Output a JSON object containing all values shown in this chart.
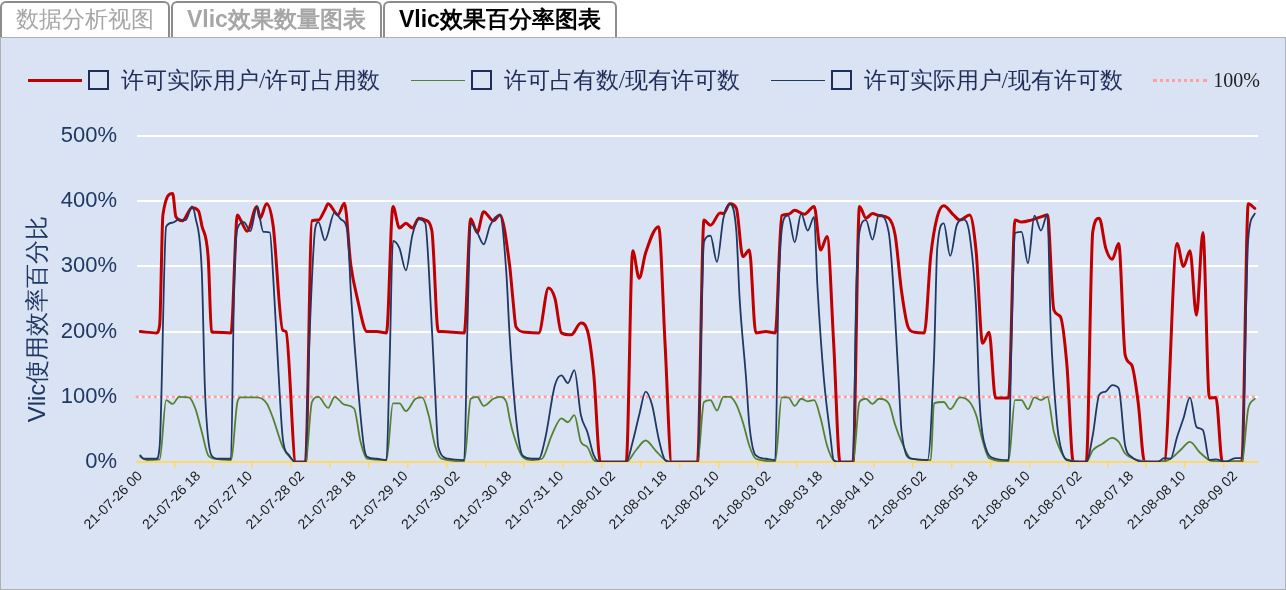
{
  "chart_data": {
    "type": "line",
    "title": "Vlic效果百分率图表",
    "annotations": [
      "数据分析视图",
      "Vlic效果数量图表"
    ],
    "ylabel": "Vlic使用效率百分比",
    "xlim": [
      "--07-25T23:00",
      "--08-09T09:00"
    ],
    "xticks": [
      {
        "value": "--07-26T00:00",
        "label": "21-07-26 00"
      },
      {
        "value": "--07-26T10:30",
        "label": null
      },
      {
        "value": "--07-26T18:00",
        "label": "21-07-26 18"
      },
      {
        "value": "--07-26T22:30",
        "label": null
      },
      {
        "value": "--07-27T10:00",
        "label": "21-07-27 10"
      },
      {
        "value": "--07-27T10:30",
        "label": null
      },
      {
        "value": "--07-27T22:30",
        "label": null
      },
      {
        "value": "--07-28T02:00",
        "label": "21-07-28 02"
      },
      {
        "value": "--07-28T10:30",
        "label": null
      },
      {
        "value": "--07-28T18:00",
        "label": "21-07-28 18"
      },
      {
        "value": "--07-28T22:30",
        "label": null
      },
      {
        "value": "--07-29T10:00",
        "label": "21-07-29 10"
      },
      {
        "value": "--07-29T10:30",
        "label": null
      },
      {
        "value": "--07-29T22:30",
        "label": null
      },
      {
        "value": "--07-30T02:00",
        "label": "21-07-30 02"
      },
      {
        "value": "--07-30T10:30",
        "label": null
      },
      {
        "value": "--07-30T18:00",
        "label": "21-07-30 18"
      },
      {
        "value": "--07-30T22:30",
        "label": null
      },
      {
        "value": "--07-31T10:00",
        "label": "21-07-31 10"
      },
      {
        "value": "--07-31T10:30",
        "label": null
      },
      {
        "value": "--07-31T22:30",
        "label": null
      },
      {
        "value": "--08-01T02:00",
        "label": "21-08-01 02"
      },
      {
        "value": "--08-01T10:30",
        "label": null
      },
      {
        "value": "--08-01T18:00",
        "label": "21-08-01 18"
      },
      {
        "value": "--08-01T22:30",
        "label": null
      },
      {
        "value": "--08-02T10:00",
        "label": "21-08-02 10"
      },
      {
        "value": "--08-02T10:30",
        "label": null
      },
      {
        "value": "--08-02T22:30",
        "label": null
      },
      {
        "value": "--08-03T02:00",
        "label": "21-08-03 02"
      },
      {
        "value": "--08-03T10:30",
        "label": null
      },
      {
        "value": "--08-03T18:00",
        "label": "21-08-03 18"
      },
      {
        "value": "--08-03T22:30",
        "label": null
      },
      {
        "value": "--08-04T10:00",
        "label": "21-08-04 10"
      },
      {
        "value": "--08-04T10:30",
        "label": null
      },
      {
        "value": "--08-04T22:30",
        "label": null
      },
      {
        "value": "--08-05T02:00",
        "label": "21-08-05 02"
      },
      {
        "value": "--08-05T10:30",
        "label": null
      },
      {
        "value": "--08-05T18:00",
        "label": "21-08-05 18"
      },
      {
        "value": "--08-05T22:30",
        "label": null
      },
      {
        "value": "--08-06T10:00",
        "label": "21-08-06 10"
      },
      {
        "value": "--08-06T10:30",
        "label": null
      },
      {
        "value": "--08-06T22:30",
        "label": null
      },
      {
        "value": "--08-07T02:00",
        "label": "21-08-07 02"
      },
      {
        "value": "--08-07T10:30",
        "label": null
      },
      {
        "value": "--08-07T18:00",
        "label": "21-08-07 18"
      },
      {
        "value": "--08-07T22:30",
        "label": null
      },
      {
        "value": "--08-08T10:00",
        "label": "21-08-08 10"
      },
      {
        "value": "--08-08T10:30",
        "label": null
      },
      {
        "value": "--08-08T22:30",
        "label": null
      },
      {
        "value": "--08-09T02:00",
        "label": "21-08-09 02"
      }
    ],
    "ylim": [
      0,
      500
    ],
    "yticks": [
      {
        "value": 0,
        "label": "0%"
      },
      {
        "value": 100,
        "label": "100%"
      },
      {
        "value": 200,
        "label": "200%"
      },
      {
        "value": 300,
        "label": "300%"
      },
      {
        "value": 400,
        "label": "400%"
      },
      {
        "value": 500,
        "label": "500%"
      }
    ],
    "grid": "y",
    "legend": "top",
    "ref_lines": [
      {
        "axis": "y",
        "value": 100,
        "label": "100%",
        "color": "#ff9f9f",
        "line_style": "dotted"
      }
    ],
    "series": [
      {
        "name": "许可实际用户/许可占用数",
        "color": "#c00000",
        "x": [
          "--07-26T00:00",
          "--07-26T05:00",
          "--07-26T06:00",
          "--07-26T07:00",
          "--07-26T10:00",
          "--07-26T11:00",
          "--07-26T13:00",
          "--07-26T16:00",
          "--07-26T18:00",
          "--07-26T19:00",
          "--07-26T21:00",
          "--07-26T22:00",
          "--07-26T23:00",
          "--07-27T04:00",
          "--07-27T06:00",
          "--07-27T07:00",
          "--07-27T09:00",
          "--07-27T12:00",
          "--07-27T13:00",
          "--07-27T15:00",
          "--07-27T17:00",
          "--07-27T20:00",
          "--07-27T21:00",
          "--07-28T00:00",
          "--07-28T03:00",
          "--07-28T05:00",
          "--07-28T07:00",
          "--07-28T09:00",
          "--07-28T10:00",
          "--07-28T13:00",
          "--07-28T15:00",
          "--07-28T17:00",
          "--07-28T19:00",
          "--07-28T22:00",
          "--07-29T01:00",
          "--07-29T04:00",
          "--07-29T06:00",
          "--07-29T08:00",
          "--07-29T10:00",
          "--07-29T12:00",
          "--07-29T14:00",
          "--07-29T16:00",
          "--07-29T18:00",
          "--07-29T20:00",
          "--07-29T21:00",
          "--07-30T04:00",
          "--07-30T06:00",
          "--07-30T08:00",
          "--07-30T10:00",
          "--07-30T13:00",
          "--07-30T15:00",
          "--07-30T18:00",
          "--07-30T19:00",
          "--07-30T20:00",
          "--07-30T23:00",
          "--07-31T03:00",
          "--07-31T06:00",
          "--07-31T08:00",
          "--07-31T10:00",
          "--07-31T13:00",
          "--07-31T16:00",
          "--07-31T18:00",
          "--07-31T20:00",
          "--07-31T22:00",
          "--08-01T06:00",
          "--08-01T08:00",
          "--08-01T10:00",
          "--08-01T12:00",
          "--08-01T16:00",
          "--08-01T18:00",
          "--08-01T20:00",
          "--08-02T04:00",
          "--08-02T06:00",
          "--08-02T08:00",
          "--08-02T11:00",
          "--08-02T12:00",
          "--08-02T14:00",
          "--08-02T16:00",
          "--08-02T18:00",
          "--08-02T20:00",
          "--08-02T22:00",
          "--08-03T01:00",
          "--08-03T04:00",
          "--08-03T06:00",
          "--08-03T08:00",
          "--08-03T10:00",
          "--08-03T13:00",
          "--08-03T16:00",
          "--08-03T18:00",
          "--08-03T20:00",
          "--08-03T22:00",
          "--08-04T00:00",
          "--08-04T04:00",
          "--08-04T06:00",
          "--08-04T08:00",
          "--08-04T10:00",
          "--08-04T12:00",
          "--08-04T15:00",
          "--08-04T17:00",
          "--08-04T19:00",
          "--08-04T21:00",
          "--08-04T23:00",
          "--08-05T02:00",
          "--08-05T04:00",
          "--08-05T06:00",
          "--08-05T08:00",
          "--08-05T11:00",
          "--08-05T13:00",
          "--08-05T16:00",
          "--08-05T18:00",
          "--08-05T20:00",
          "--08-05T22:00",
          "--08-06T00:00",
          "--08-06T04:00",
          "--08-06T06:00",
          "--08-06T08:00",
          "--08-06T11:00",
          "--08-06T14:00",
          "--08-06T16:00",
          "--08-06T18:00",
          "--08-06T20:00",
          "--08-06T22:00",
          "--08-07T00:00",
          "--08-07T04:00",
          "--08-07T06:00",
          "--08-07T08:00",
          "--08-07T10:00",
          "--08-07T12:00",
          "--08-07T14:00",
          "--08-07T16:00",
          "--08-07T18:00",
          "--08-07T20:00",
          "--08-07T22:00",
          "--08-08T04:00",
          "--08-08T08:00",
          "--08-08T10:00",
          "--08-08T12:00",
          "--08-08T14:00",
          "--08-08T16:00",
          "--08-08T18:00",
          "--08-08T20:00",
          "--08-08T22:00",
          "--08-09T04:00",
          "--08-09T06:00",
          "--08-09T08:00"
        ],
        "values": [
          200,
          198,
          210,
          379,
          412,
          376,
          370,
          390,
          385,
          363,
          312,
          200,
          199,
          198,
          379,
          371,
          354,
          392,
          374,
          396,
          363,
          202,
          200,
          0,
          0,
          370,
          371,
          387,
          396,
          379,
          397,
          302,
          251,
          200,
          200,
          198,
          392,
          359,
          366,
          359,
          374,
          371,
          355,
          200,
          200,
          198,
          373,
          352,
          384,
          370,
          379,
          302,
          251,
          207,
          199,
          198,
          267,
          251,
          198,
          195,
          213,
          202,
          133,
          0,
          0,
          324,
          282,
          321,
          361,
          180,
          0,
          0,
          371,
          363,
          382,
          381,
          396,
          389,
          315,
          325,
          198,
          200,
          198,
          378,
          380,
          386,
          380,
          392,
          325,
          346,
          185,
          0,
          0,
          392,
          374,
          381,
          378,
          374,
          348,
          261,
          207,
          199,
          198,
          317,
          376,
          393,
          379,
          371,
          379,
          323,
          182,
          199,
          98,
          98,
          371,
          368,
          371,
          376,
          379,
          233,
          223,
          150,
          0,
          0,
          353,
          374,
          328,
          311,
          335,
          164,
          149,
          92,
          0,
          0,
          335,
          300,
          324,
          225,
          352,
          98,
          99,
          0,
          0,
          396,
          389
        ]
      },
      {
        "name": "许可占有数/现有许可数",
        "color": "#548235",
        "x": [
          "--07-26T00:00",
          "--07-26T02:00",
          "--07-26T06:00",
          "--07-26T08:00",
          "--07-26T10:00",
          "--07-26T12:00",
          "--07-26T15:00",
          "--07-26T17:00",
          "--07-26T19:00",
          "--07-26T21:00",
          "--07-26T23:00",
          "--07-27T04:00",
          "--07-27T06:00",
          "--07-27T07:00",
          "--07-27T12:00",
          "--07-27T15:00",
          "--07-27T17:00",
          "--07-27T20:00",
          "--07-27T23:00",
          "--07-28T00:00",
          "--07-28T03:00",
          "--07-28T05:00",
          "--07-28T07:00",
          "--07-28T10:00",
          "--07-28T12:00",
          "--07-28T15:00",
          "--07-28T18:00",
          "--07-28T20:00",
          "--07-28T22:00",
          "--07-29T04:00",
          "--07-29T06:00",
          "--07-29T08:00",
          "--07-29T10:00",
          "--07-29T13:00",
          "--07-29T15:00",
          "--07-29T17:00",
          "--07-29T19:00",
          "--07-29T21:00",
          "--07-30T04:00",
          "--07-30T06:00",
          "--07-30T08:00",
          "--07-30T10:00",
          "--07-30T13:00",
          "--07-30T15:00",
          "--07-30T17:00",
          "--07-30T18:00",
          "--07-30T19:00",
          "--07-30T22:00",
          "--07-31T01:00",
          "--07-31T04:00",
          "--07-31T07:00",
          "--07-31T10:00",
          "--07-31T12:00",
          "--07-31T14:00",
          "--07-31T16:00",
          "--07-31T18:00",
          "--07-31T20:00",
          "--07-31T22:00",
          "--08-01T06:00",
          "--08-01T09:00",
          "--08-01T12:00",
          "--08-01T15:00",
          "--08-01T18:00",
          "--08-01T20:00",
          "--08-02T04:00",
          "--08-02T06:00",
          "--08-02T08:00",
          "--08-02T10:00",
          "--08-02T12:00",
          "--08-02T14:00",
          "--08-02T16:00",
          "--08-02T18:00",
          "--08-02T20:00",
          "--08-02T22:00",
          "--08-03T04:00",
          "--08-03T06:00",
          "--08-03T08:00",
          "--08-03T10:00",
          "--08-03T12:00",
          "--08-03T14:00",
          "--08-03T16:00",
          "--08-03T18:00",
          "--08-03T20:00",
          "--08-03T22:00",
          "--08-04T00:00",
          "--08-04T04:00",
          "--08-04T06:00",
          "--08-04T08:00",
          "--08-04T10:00",
          "--08-04T12:00",
          "--08-04T15:00",
          "--08-04T17:00",
          "--08-04T19:00",
          "--08-04T22:00",
          "--08-05T04:00",
          "--08-05T05:00",
          "--08-05T08:00",
          "--08-05T10:00",
          "--08-05T13:00",
          "--08-05T16:00",
          "--08-05T18:00",
          "--08-05T20:00",
          "--08-05T22:00",
          "--08-06T04:00",
          "--08-06T06:00",
          "--08-06T08:00",
          "--08-06T10:00",
          "--08-06T12:00",
          "--08-06T14:00",
          "--08-06T16:00",
          "--08-06T18:00",
          "--08-06T20:00",
          "--08-06T22:00",
          "--08-07T04:00",
          "--08-07T06:00",
          "--08-07T09:00",
          "--08-07T12:00",
          "--08-07T14:00",
          "--08-07T16:00",
          "--08-07T20:00",
          "--08-08T03:00",
          "--08-08T06:00",
          "--08-08T09:00",
          "--08-08T12:00",
          "--08-08T15:00",
          "--08-08T18:00",
          "--08-08T21:00",
          "--08-09T04:00",
          "--08-09T06:00",
          "--08-09T08:00"
        ],
        "values": [
          8,
          3,
          4,
          95,
          89,
          100,
          99,
          82,
          46,
          10,
          5,
          3,
          92,
          99,
          99,
          90,
          67,
          23,
          3,
          0,
          0,
          92,
          100,
          83,
          100,
          88,
          82,
          31,
          5,
          3,
          90,
          90,
          78,
          97,
          99,
          72,
          25,
          5,
          1,
          97,
          100,
          86,
          97,
          100,
          92,
          67,
          46,
          8,
          3,
          5,
          41,
          67,
          61,
          72,
          31,
          23,
          3,
          0,
          0,
          18,
          33,
          18,
          3,
          0,
          0,
          92,
          95,
          79,
          100,
          100,
          88,
          61,
          25,
          5,
          1,
          99,
          99,
          86,
          97,
          93,
          95,
          67,
          25,
          3,
          0,
          0,
          92,
          97,
          89,
          97,
          90,
          57,
          31,
          5,
          3,
          90,
          92,
          81,
          99,
          92,
          72,
          33,
          6,
          1,
          95,
          95,
          81,
          99,
          95,
          100,
          46,
          18,
          4,
          0,
          18,
          28,
          37,
          31,
          13,
          3,
          0,
          5,
          18,
          31,
          15,
          3,
          1,
          1,
          82,
          97
        ]
      },
      {
        "name": "许可实际用户/现有许可数",
        "color": "#203864",
        "x": [
          "--07-26T00:00",
          "--07-26T01:00",
          "--07-26T05:00",
          "--07-26T06:00",
          "--07-26T08:00",
          "--07-26T10:00",
          "--07-26T12:00",
          "--07-26T14:00",
          "--07-26T16:00",
          "--07-26T17:00",
          "--07-26T19:00",
          "--07-26T20:00",
          "--07-26T22:00",
          "--07-27T00:00",
          "--07-27T04:00",
          "--07-27T05:00",
          "--07-27T06:00",
          "--07-27T08:00",
          "--07-27T10:00",
          "--07-27T12:00",
          "--07-27T14:00",
          "--07-27T16:00",
          "--07-27T17:00",
          "--07-27T19:00",
          "--07-27T20:00",
          "--07-27T22:00",
          "--07-28T00:00",
          "--07-28T03:00",
          "--07-28T04:00",
          "--07-28T06:00",
          "--07-28T07:00",
          "--07-28T09:00",
          "--07-28T12:00",
          "--07-28T14:00",
          "--07-28T16:00",
          "--07-28T17:00",
          "--07-28T19:00",
          "--07-28T21:00",
          "--07-28T22:00",
          "--07-29T01:00",
          "--07-29T04:00",
          "--07-29T05:00",
          "--07-29T06:00",
          "--07-29T08:00",
          "--07-29T10:00",
          "--07-29T12:00",
          "--07-29T14:00",
          "--07-29T16:00",
          "--07-29T17:00",
          "--07-29T19:00",
          "--07-29T20:00",
          "--07-29T23:00",
          "--07-30T04:00",
          "--07-30T05:00",
          "--07-30T06:00",
          "--07-30T08:00",
          "--07-30T10:00",
          "--07-30T12:00",
          "--07-30T15:00",
          "--07-30T17:00",
          "--07-30T18:00",
          "--07-30T20:00",
          "--07-30T22:00",
          "--07-31T01:00",
          "--07-31T03:00",
          "--07-31T05:00",
          "--07-31T08:00",
          "--07-31T10:00",
          "--07-31T12:00",
          "--07-31T14:00",
          "--07-31T16:00",
          "--07-31T18:00",
          "--07-31T20:00",
          "--07-31T22:00",
          "--08-01T06:00",
          "--08-01T08:00",
          "--08-01T10:00",
          "--08-01T12:00",
          "--08-01T14:00",
          "--08-01T16:00",
          "--08-01T18:00",
          "--08-01T20:00",
          "--08-02T04:00",
          "--08-02T06:00",
          "--08-02T08:00",
          "--08-02T10:00",
          "--08-02T12:00",
          "--08-02T14:00",
          "--08-02T16:00",
          "--08-02T17:00",
          "--08-02T19:00",
          "--08-02T20:00",
          "--08-02T22:00",
          "--08-03T01:00",
          "--08-03T04:00",
          "--08-03T05:00",
          "--08-03T07:00",
          "--08-03T08:00",
          "--08-03T10:00",
          "--08-03T12:00",
          "--08-03T14:00",
          "--08-03T16:00",
          "--08-03T17:00",
          "--08-03T19:00",
          "--08-03T21:00",
          "--08-03T22:00",
          "--08-04T00:00",
          "--08-04T04:00",
          "--08-04T05:00",
          "--08-04T06:00",
          "--08-04T08:00",
          "--08-04T10:00",
          "--08-04T12:00",
          "--08-04T15:00",
          "--08-04T16:00",
          "--08-04T18:00",
          "--08-04T19:00",
          "--08-04T22:00",
          "--08-05T03:00",
          "--08-05T05:00",
          "--08-05T06:00",
          "--08-05T08:00",
          "--08-05T10:00",
          "--08-05T12:00",
          "--08-05T14:00",
          "--08-05T16:00",
          "--08-05T18:00",
          "--08-05T19:00",
          "--08-05T21:00",
          "--08-06T00:00",
          "--08-06T04:00",
          "--08-06T05:00",
          "--08-06T06:00",
          "--08-06T08:00",
          "--08-06T10:00",
          "--08-06T12:00",
          "--08-06T14:00",
          "--08-06T16:00",
          "--08-06T17:00",
          "--08-06T19:00",
          "--08-06T20:00",
          "--08-06T22:00",
          "--08-07T04:00",
          "--08-07T06:00",
          "--08-07T08:00",
          "--08-07T10:00",
          "--08-07T12:00",
          "--08-07T14:00",
          "--08-07T16:00",
          "--08-07T18:00",
          "--08-07T22:00",
          "--08-08T02:00",
          "--08-08T04:00",
          "--08-08T06:00",
          "--08-08T08:00",
          "--08-08T10:00",
          "--08-08T12:00",
          "--08-08T14:00",
          "--08-08T16:00",
          "--08-08T18:00",
          "--08-08T20:00",
          "--08-08T23:00",
          "--08-09T02:00",
          "--08-09T04:00",
          "--08-09T06:00",
          "--08-09T08:00"
        ],
        "values": [
          10,
          5,
          5,
          25,
          361,
          367,
          372,
          371,
          392,
          376,
          292,
          108,
          10,
          5,
          5,
          277,
          358,
          368,
          354,
          392,
          353,
          352,
          287,
          108,
          36,
          10,
          0,
          0,
          159,
          358,
          368,
          340,
          383,
          372,
          353,
          261,
          128,
          25,
          8,
          5,
          3,
          159,
          339,
          328,
          294,
          348,
          372,
          366,
          302,
          108,
          23,
          5,
          3,
          210,
          366,
          352,
          334,
          363,
          379,
          290,
          195,
          67,
          10,
          5,
          5,
          36,
          118,
          133,
          121,
          141,
          72,
          46,
          10,
          0,
          0,
          31,
          72,
          108,
          87,
          36,
          3,
          0,
          0,
          338,
          347,
          307,
          374,
          396,
          353,
          251,
          128,
          57,
          10,
          5,
          3,
          261,
          376,
          378,
          337,
          381,
          355,
          376,
          271,
          128,
          41,
          3,
          0,
          0,
          261,
          353,
          371,
          341,
          379,
          353,
          302,
          133,
          46,
          5,
          3,
          159,
          328,
          366,
          316,
          363,
          372,
          348,
          235,
          98,
          21,
          5,
          3,
          210,
          351,
          353,
          305,
          378,
          355,
          380,
          210,
          57,
          25,
          3,
          0,
          41,
          103,
          108,
          118,
          113,
          25,
          8,
          0,
          0,
          6,
          5,
          38,
          67,
          99,
          54,
          49,
          3,
          4,
          0,
          6,
          6,
          343,
          381
        ]
      }
    ]
  }
}
